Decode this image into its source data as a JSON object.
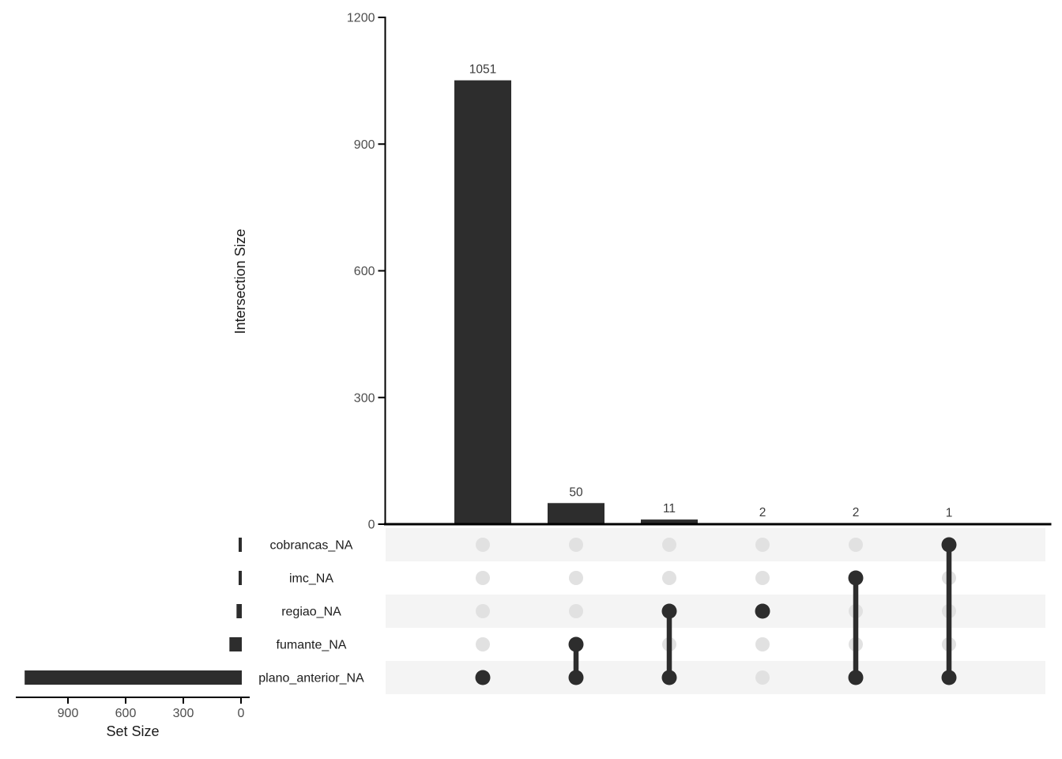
{
  "chart_data": {
    "type": "upset",
    "title": "",
    "grid": false,
    "legend_position": "none",
    "intersection_bar": {
      "ylabel": "Intersection Size",
      "yticks": [
        0,
        300,
        600,
        900,
        1200
      ],
      "ylim": [
        0,
        1200
      ],
      "values": [
        1051,
        50,
        11,
        2,
        2,
        1
      ]
    },
    "sets": [
      {
        "name": "cobrancas_NA",
        "size": 1
      },
      {
        "name": "imc_NA",
        "size": 2
      },
      {
        "name": "regiao_NA",
        "size": 13
      },
      {
        "name": "fumante_NA",
        "size": 50
      },
      {
        "name": "plano_anterior_NA",
        "size": 1115
      }
    ],
    "set_size_axis": {
      "label": "Set Size",
      "ticks": [
        900,
        600,
        300,
        0
      ],
      "xlim": [
        1200,
        0
      ]
    },
    "intersections": [
      {
        "value": 1051,
        "members": [
          "plano_anterior_NA"
        ]
      },
      {
        "value": 50,
        "members": [
          "fumante_NA",
          "plano_anterior_NA"
        ]
      },
      {
        "value": 11,
        "members": [
          "regiao_NA",
          "plano_anterior_NA"
        ]
      },
      {
        "value": 2,
        "members": [
          "regiao_NA"
        ]
      },
      {
        "value": 2,
        "members": [
          "imc_NA",
          "plano_anterior_NA"
        ]
      },
      {
        "value": 1,
        "members": [
          "cobrancas_NA",
          "plano_anterior_NA"
        ]
      }
    ],
    "colors": {
      "bar": "#2D2D2D",
      "active_dot": "#2D2D2D",
      "inactive_dot": "#E1E1E1",
      "stripe": "#F4F4F4",
      "axis": "#000000",
      "tick_label": "#4D4D4D",
      "value_label": "#3A3A3A",
      "row_label": "#1C1C1C",
      "title": "#1A1A1A",
      "background": "#FFFFFF"
    }
  }
}
